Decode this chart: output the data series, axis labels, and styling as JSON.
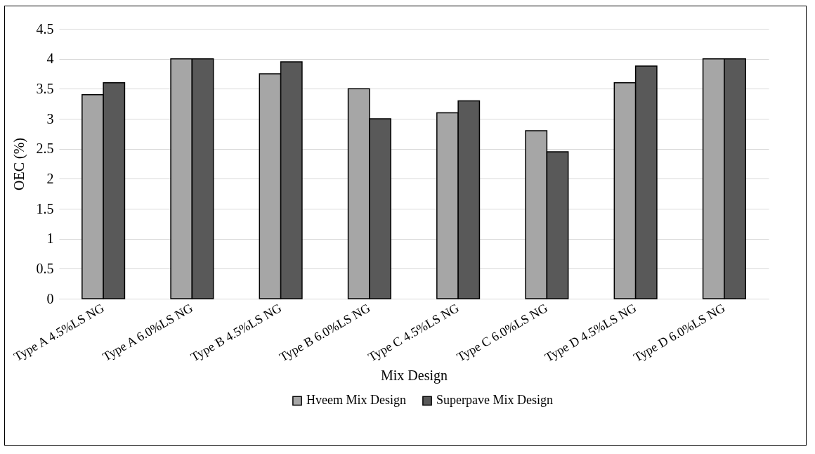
{
  "chart_data": {
    "type": "bar",
    "xlabel": "Mix Design",
    "ylabel": "OEC (%)",
    "categories": [
      "Type A 4.5%LS NG",
      "Type A 6.0%LS NG",
      "Type B 4.5%LS NG",
      "Type B 6.0%LS NG",
      "Type C 4.5%LS NG",
      "Type C 6.0%LS NG",
      "Type D 4.5%LS NG",
      "Type D 6.0%LS NG"
    ],
    "series": [
      {
        "name": "Hveem Mix Design",
        "color": "#a6a6a6",
        "values": [
          3.4,
          4,
          3.75,
          3.5,
          3.1,
          2.8,
          3.6,
          4
        ]
      },
      {
        "name": "Superpave Mix Design",
        "color": "#595959",
        "values": [
          3.6,
          4,
          3.95,
          3.0,
          3.3,
          2.45,
          3.88,
          4
        ]
      }
    ],
    "ylim": [
      0,
      4.5
    ],
    "yticks": [
      0,
      0.5,
      1,
      1.5,
      2,
      2.5,
      3,
      3.5,
      4,
      4.5
    ],
    "grid": "y",
    "legend": "bottom"
  }
}
